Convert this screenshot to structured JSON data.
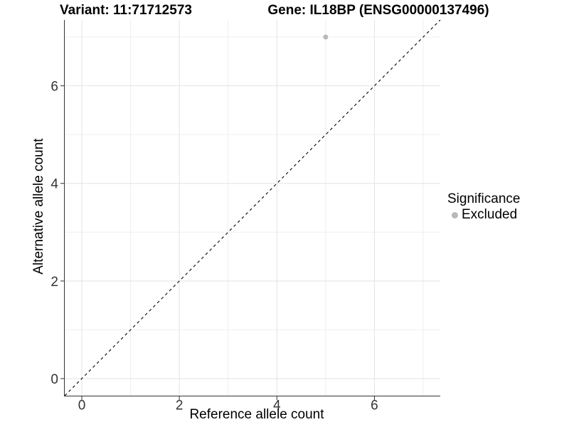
{
  "chart_data": {
    "type": "scatter",
    "title_left": "Variant: 11:71712573",
    "title_right": "Gene: IL18BP (ENSG00000137496)",
    "xlabel": "Reference allele count",
    "ylabel": "Alternative allele count",
    "xlim": [
      -0.35,
      7.35
    ],
    "ylim": [
      -0.35,
      7.35
    ],
    "x_ticks": [
      0,
      2,
      4,
      6
    ],
    "y_ticks": [
      0,
      2,
      4,
      6
    ],
    "x_tick_labels": [
      "0",
      "2",
      "4",
      "6"
    ],
    "y_tick_labels": [
      "0",
      "2",
      "4",
      "6"
    ],
    "minor_gridlines": [
      1,
      3,
      5,
      7
    ],
    "grid": "major+minor",
    "points": [
      {
        "x": 5,
        "y": 7,
        "series": "Excluded"
      }
    ],
    "identity_line": {
      "style": "dashed",
      "slope": 1,
      "intercept": 0
    },
    "legend": {
      "title": "Significance",
      "position": "right",
      "items": [
        {
          "label": "Excluded",
          "color": "#b8b8b8",
          "marker": "circle"
        }
      ]
    }
  },
  "colors": {
    "background": "#ffffff",
    "axis": "#333333",
    "tick_text": "#333333",
    "title_text": "#000000",
    "grid_major": "#e3e3e3",
    "grid_minor": "#efefef",
    "identity_line": "#000000",
    "point": "#b8b8b8"
  }
}
